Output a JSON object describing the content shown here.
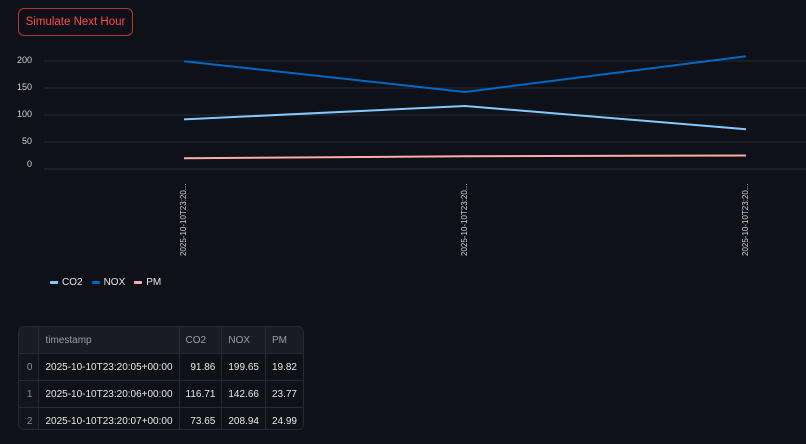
{
  "toolbar": {
    "simulate_label": "Simulate Next Hour",
    "accent_color": "#ff4b4b"
  },
  "chart_data": {
    "type": "line",
    "title": "",
    "xlabel": "",
    "ylabel": "",
    "x": [
      "2025-10-10T23:20:05+00:00",
      "2025-10-10T23:20:06+00:00",
      "2025-10-10T23:20:07+00:00"
    ],
    "x_tick_labels": [
      "2025-10-10T23:20...",
      "2025-10-10T23:20...",
      "2025-10-10T23:20..."
    ],
    "series": [
      {
        "name": "CO2",
        "color": "#83c9ff",
        "values": [
          91.86,
          116.71,
          73.65
        ]
      },
      {
        "name": "NOX",
        "color": "#0068c9",
        "values": [
          199.65,
          142.66,
          208.94
        ]
      },
      {
        "name": "PM",
        "color": "#ffabab",
        "values": [
          19.82,
          23.77,
          24.99
        ]
      }
    ],
    "y_ticks": [
      "200",
      "150",
      "100",
      "50",
      "0"
    ],
    "ylim": [
      0,
      200
    ],
    "grid": true,
    "legend_position": "bottom-left"
  },
  "legend": {
    "items": [
      {
        "label": "CO2",
        "color": "#83c9ff"
      },
      {
        "label": "NOX",
        "color": "#0068c9"
      },
      {
        "label": "PM",
        "color": "#ffabab"
      }
    ]
  },
  "table": {
    "columns": [
      "",
      "timestamp",
      "CO2",
      "NOX",
      "PM"
    ],
    "rows": [
      {
        "index": "0",
        "timestamp": "2025-10-10T23:20:05+00:00",
        "co2": "91.86",
        "nox": "199.65",
        "pm": "19.82"
      },
      {
        "index": "1",
        "timestamp": "2025-10-10T23:20:06+00:00",
        "co2": "116.71",
        "nox": "142.66",
        "pm": "23.77"
      },
      {
        "index": "2",
        "timestamp": "2025-10-10T23:20:07+00:00",
        "co2": "73.65",
        "nox": "208.94",
        "pm": "24.99"
      }
    ]
  }
}
